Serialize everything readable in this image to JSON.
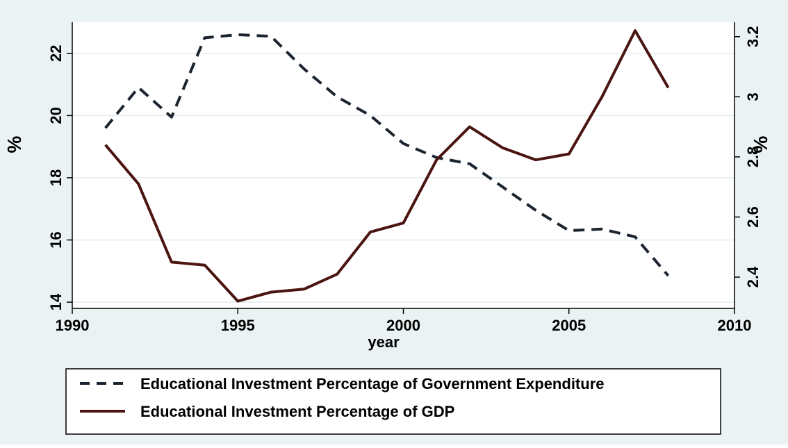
{
  "chart_data": {
    "type": "line",
    "title": "",
    "xlabel": "year",
    "ylabel_left": "%",
    "ylabel_right": "%",
    "xlim": [
      1990,
      2010
    ],
    "ylim_left": [
      13.8,
      23
    ],
    "ylim_right": [
      2.296,
      3.248
    ],
    "xticks": [
      1990,
      1995,
      2000,
      2005,
      2010
    ],
    "yticks_left": [
      14,
      16,
      18,
      20,
      22
    ],
    "yticks_right": [
      2.4,
      2.6,
      2.8,
      3,
      3.2
    ],
    "grid": "horizontal",
    "legend_position": "bottom",
    "series": [
      {
        "name": "Educational Investment Percentage of Government Expenditure",
        "axis": "left",
        "style": "dashed",
        "color": "#1c2430",
        "x": [
          1991,
          1992,
          1993,
          1994,
          1995,
          1996,
          1997,
          1998,
          1999,
          2000,
          2001,
          2002,
          2003,
          2004,
          2005,
          2006,
          2007,
          2008
        ],
        "values": [
          19.6,
          20.9,
          19.95,
          22.5,
          22.6,
          22.55,
          21.5,
          20.6,
          20.0,
          19.1,
          18.65,
          18.45,
          17.7,
          16.95,
          16.3,
          16.35,
          16.1,
          14.85
        ]
      },
      {
        "name": "Educational Investment Percentage of GDP",
        "axis": "right",
        "style": "solid",
        "color": "#4a1410",
        "x": [
          1991,
          1992,
          1993,
          1994,
          1995,
          1996,
          1997,
          1998,
          1999,
          2000,
          2001,
          2002,
          2003,
          2004,
          2005,
          2006,
          2007,
          2008
        ],
        "values": [
          2.84,
          2.71,
          2.45,
          2.44,
          2.32,
          2.35,
          2.36,
          2.41,
          2.55,
          2.58,
          2.79,
          2.9,
          2.83,
          2.79,
          2.81,
          3.0,
          3.22,
          3.03
        ]
      }
    ]
  }
}
